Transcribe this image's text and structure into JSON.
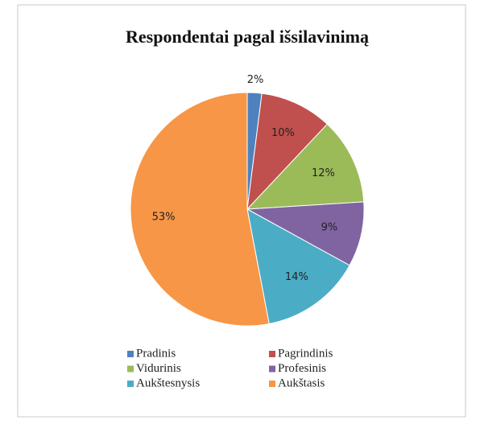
{
  "chart_data": {
    "type": "pie",
    "title": "Respondentai pagal išsilavinimą",
    "categories": [
      "Pradinis",
      "Pagrindinis",
      "Vidurinis",
      "Profesinis",
      "Aukštesnysis",
      "Aukštasis"
    ],
    "values": [
      2,
      10,
      12,
      9,
      14,
      53
    ],
    "value_labels": [
      "2%",
      "10%",
      "12%",
      "9%",
      "14%",
      "53%"
    ],
    "colors": [
      "#4f81bd",
      "#c0504d",
      "#9bbb59",
      "#8064a2",
      "#4bacc6",
      "#f79646"
    ],
    "legend": "bottom"
  }
}
